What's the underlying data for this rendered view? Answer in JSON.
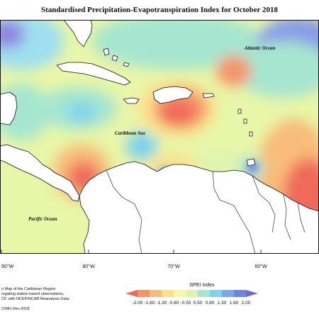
{
  "title": "Standardised Precipitation-Evapotranspiration Index for October 2018",
  "labels": {
    "atlantic": "Atlantic Ocean",
    "caribbean": "Caribbean Sea",
    "pacific": "Pacific Ocean"
  },
  "longitude_ticks": [
    "90°W",
    "80°W",
    "70°W",
    "60°W"
  ],
  "credits": [
    "n Map of the Caribbean Region",
    "regating station based observations,",
    "CF, with NCEP/NCAR Reanalysis Data.",
    "CIMH Dec-2018"
  ],
  "legend": {
    "title": "SPEI Index",
    "ticks": [
      "-2.00",
      "-1.60",
      "-1.30",
      "-0.80",
      "-0.50",
      "0.50",
      "0.80",
      "1.30",
      "1.60",
      "2.00"
    ],
    "colors": [
      "#f06a5a",
      "#f5946a",
      "#f8bc7a",
      "#fbe08c",
      "#fdf6a8",
      "#ddf4b0",
      "#a6e6d0",
      "#7fd2ec",
      "#78a8e8",
      "#6f86e0",
      "#6a6cd8"
    ]
  }
}
